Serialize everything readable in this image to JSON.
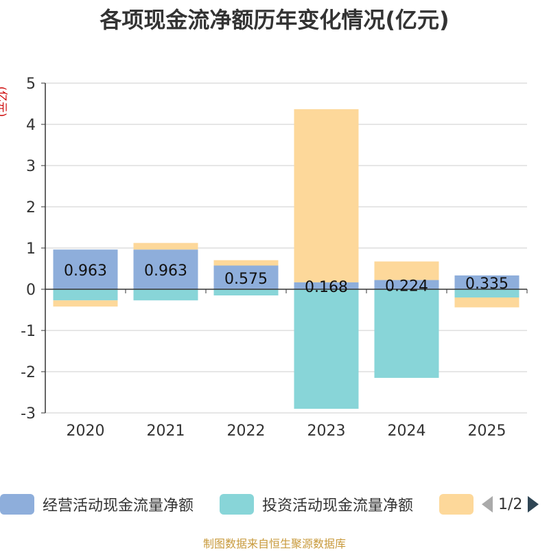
{
  "chart_data": {
    "type": "bar",
    "stacked": true,
    "title": "各项现金流净额历年变化情况(亿元)",
    "ylabel": "(亿元)",
    "xlabel": "",
    "categories": [
      "2020",
      "2021",
      "2022",
      "2023",
      "2024",
      "2025"
    ],
    "ylim": [
      -3,
      5
    ],
    "yticks": [
      -3,
      -2,
      -1,
      0,
      1,
      2,
      3,
      4,
      5
    ],
    "grid": true,
    "series": [
      {
        "name": "经营活动现金流量净额",
        "color": "#8eaedb",
        "values": [
          0.963,
          0.963,
          0.575,
          0.168,
          0.224,
          0.335
        ],
        "labels": [
          "0.963",
          "0.963",
          "0.575",
          "0.168",
          "0.224",
          "0.335"
        ]
      },
      {
        "name": "投资活动现金流量净额",
        "color": "#88d5d8",
        "values": [
          -0.27,
          -0.27,
          -0.15,
          -2.9,
          -2.15,
          -0.2
        ]
      },
      {
        "name": "",
        "color": "#fdd89a",
        "values": [
          -0.15,
          0.16,
          0.13,
          4.2,
          0.45,
          -0.24
        ]
      }
    ],
    "legend_position": "bottom"
  },
  "legend": {
    "pager": "1/2"
  },
  "source": "制图数据来自恒生聚源数据库"
}
